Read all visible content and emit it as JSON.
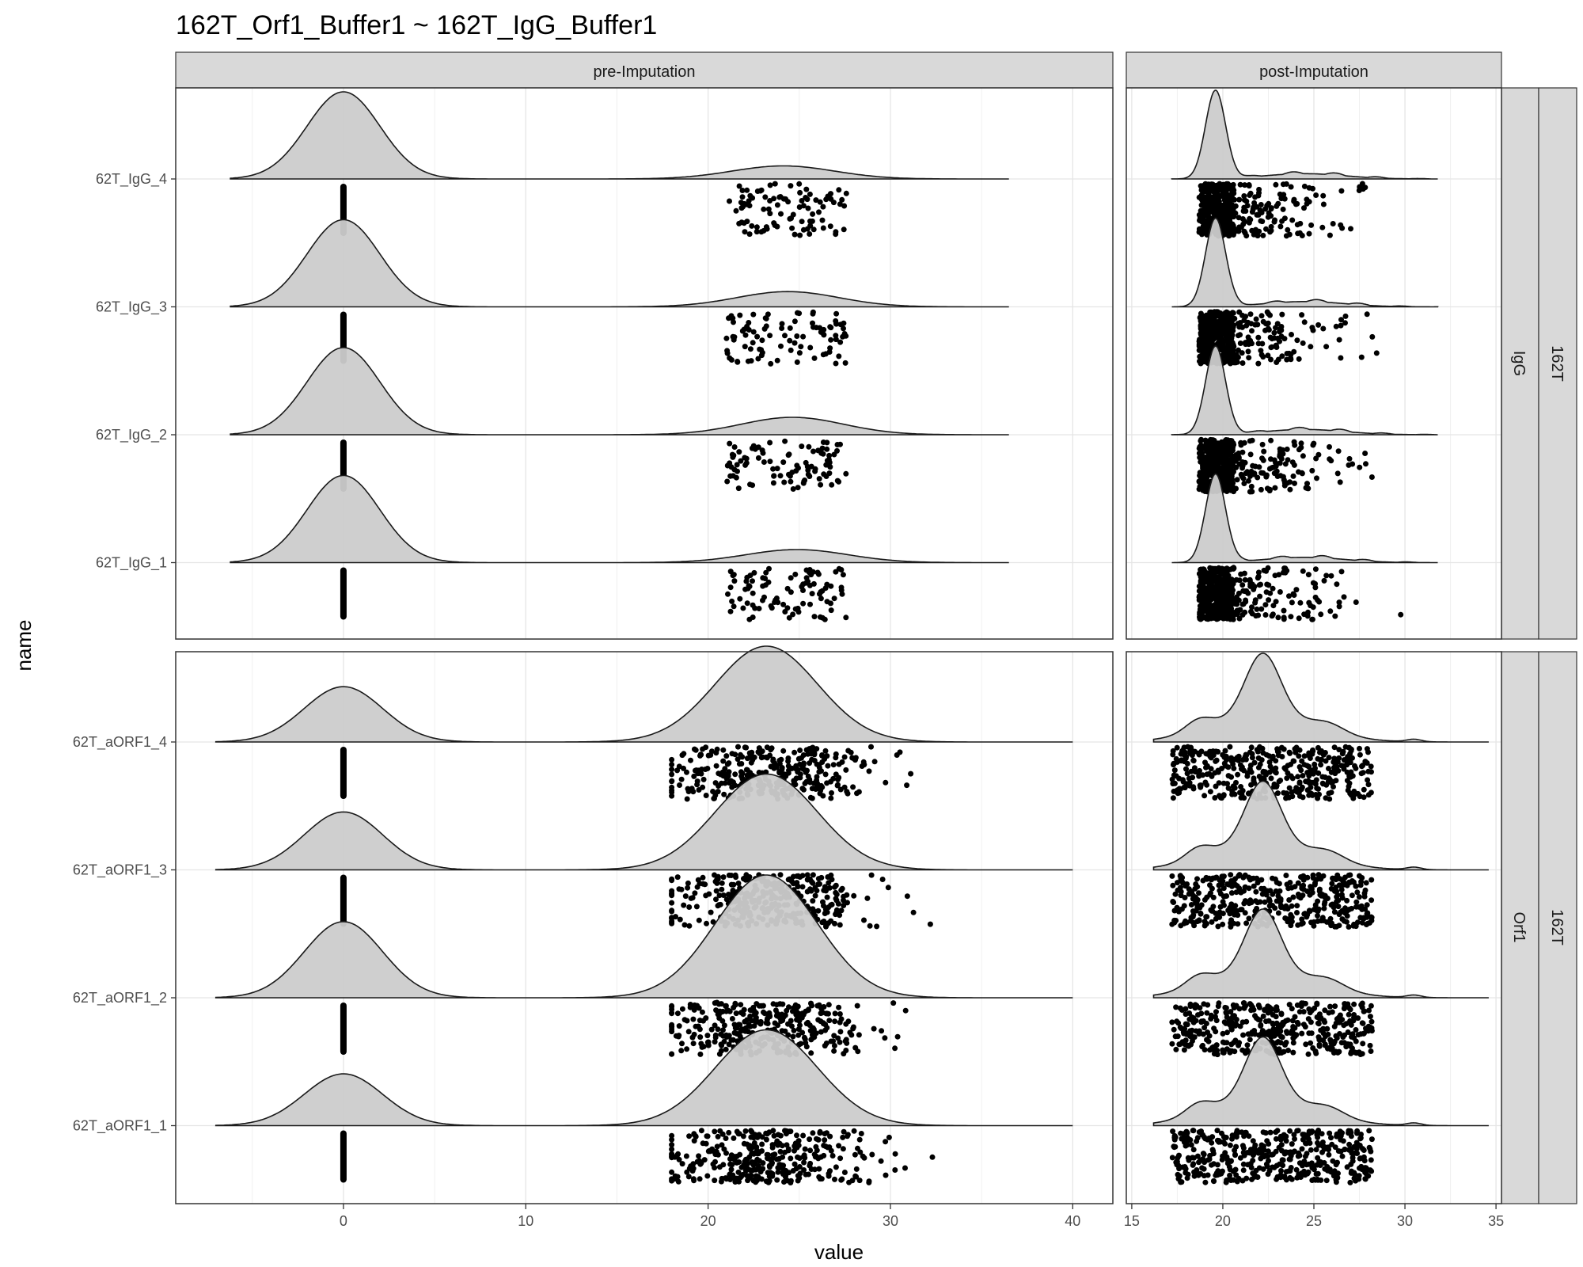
{
  "chart_data": {
    "type": "ridgeline",
    "title": "162T_Orf1_Buffer1 ~ 162T_IgG_Buffer1",
    "xlabel": "value",
    "ylabel": "name",
    "columns": [
      {
        "label": "pre-Imputation",
        "xlim": [
          -9.2,
          42.2
        ],
        "ticks": [
          0,
          10,
          20,
          30,
          40
        ]
      },
      {
        "label": "post-Imputation",
        "xlim": [
          14.7,
          35.3
        ],
        "ticks": [
          15,
          20,
          25,
          30,
          35
        ]
      }
    ],
    "rows": [
      {
        "label": "IgG",
        "outer_label": "162T",
        "samples": [
          "62T_IgG_4",
          "62T_IgG_3",
          "62T_IgG_2",
          "62T_IgG_1"
        ]
      },
      {
        "label": "Orf1",
        "outer_label": "162T",
        "samples": [
          "62T_aORF1_4",
          "62T_aORF1_3",
          "62T_aORF1_2",
          "62T_aORF1_1"
        ]
      }
    ],
    "distributions": {
      "pre": {
        "IgG": {
          "zero_peak_mean": 0,
          "zero_peak_sd": 2,
          "obs_mean": 24.5,
          "obs_sd": 3,
          "obs_range": [
            18.5,
            30
          ]
        },
        "Orf1": {
          "zero_peak_mean": 0,
          "zero_peak_sd": 2,
          "obs_mean": 23.2,
          "obs_sd": 2.8,
          "obs_range": [
            18,
            33
          ]
        }
      },
      "post": {
        "IgG": {
          "impute_peak_mean": 19.6,
          "impute_peak_sd": 0.55,
          "obs_mean": 24.5,
          "obs_sd": 2.5,
          "obs_range": [
            18.5,
            31
          ]
        },
        "Orf1": {
          "impute_peak_mean": 22.2,
          "impute_peak_sd": 0.8,
          "obs_mean": 22.3,
          "obs_sd": 2.8,
          "obs_range": [
            17,
            33
          ]
        }
      }
    },
    "legend": "none",
    "grid": true
  }
}
